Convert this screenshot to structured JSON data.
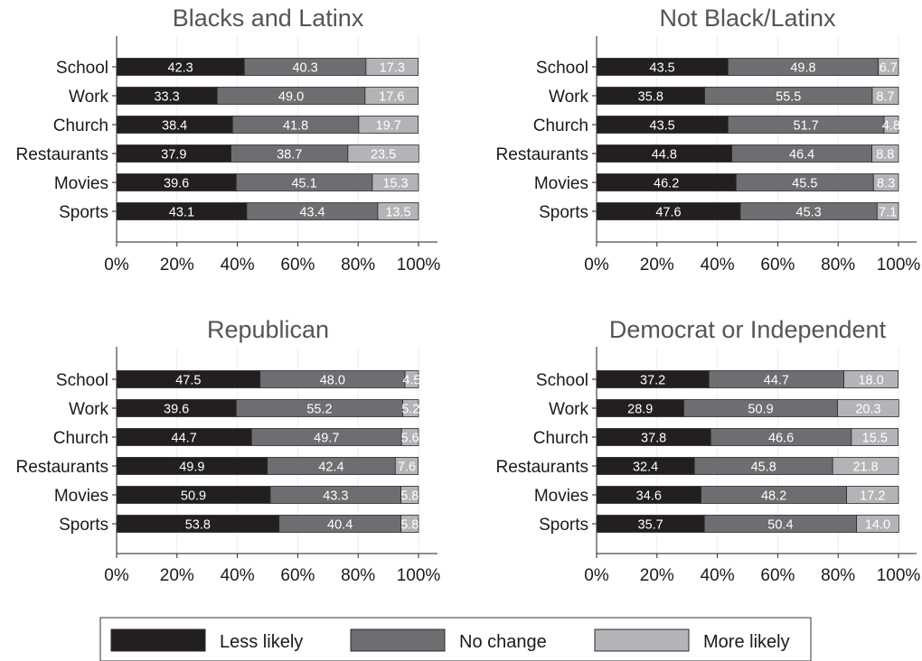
{
  "chart_data": {
    "type": "bar",
    "stacked": true,
    "orientation": "horizontal",
    "grid": true,
    "legend_position": "bottom",
    "xlim": [
      0,
      100
    ],
    "x_ticks": [
      "0%",
      "20%",
      "40%",
      "60%",
      "80%",
      "100%"
    ],
    "categories": [
      "School",
      "Work",
      "Church",
      "Restaurants",
      "Movies",
      "Sports"
    ],
    "series_names": [
      "Less likely",
      "No change",
      "More likely"
    ],
    "colors": [
      "#231f20",
      "#6e6e72",
      "#b4b4b8"
    ],
    "panels": [
      {
        "title": "Blacks and Latinx",
        "values": [
          [
            42.3,
            40.3,
            17.3
          ],
          [
            33.3,
            49.0,
            17.6
          ],
          [
            38.4,
            41.8,
            19.7
          ],
          [
            37.9,
            38.7,
            23.5
          ],
          [
            39.6,
            45.1,
            15.3
          ],
          [
            43.1,
            43.4,
            13.5
          ]
        ],
        "labels": [
          [
            "42.3",
            "40.3",
            "17.3"
          ],
          [
            "33.3",
            "49.0",
            "17.6"
          ],
          [
            "38.4",
            "41.8",
            "19.7"
          ],
          [
            "37.9",
            "38.7",
            "23.5"
          ],
          [
            "39.6",
            "45.1",
            "15.3"
          ],
          [
            "43.1",
            "43.4",
            "13.5"
          ]
        ]
      },
      {
        "title": "Not Black/Latinx",
        "values": [
          [
            43.5,
            49.8,
            6.7
          ],
          [
            35.8,
            55.5,
            8.7
          ],
          [
            43.5,
            51.7,
            4.8
          ],
          [
            44.8,
            46.4,
            8.8
          ],
          [
            46.2,
            45.5,
            8.3
          ],
          [
            47.6,
            45.3,
            7.1
          ]
        ],
        "labels": [
          [
            "43.5",
            "49.8",
            "6.7"
          ],
          [
            "35.8",
            "55.5",
            "8.7"
          ],
          [
            "43.5",
            "51.7",
            "4.8"
          ],
          [
            "44.8",
            "46.4",
            "8.8"
          ],
          [
            "46.2",
            "45.5",
            "8.3"
          ],
          [
            "47.6",
            "45.3",
            "7.1"
          ]
        ]
      },
      {
        "title": "Republican",
        "values": [
          [
            47.5,
            48.0,
            4.5
          ],
          [
            39.6,
            55.2,
            5.2
          ],
          [
            44.7,
            49.7,
            5.6
          ],
          [
            49.9,
            42.4,
            7.6
          ],
          [
            50.9,
            43.3,
            5.8
          ],
          [
            53.8,
            40.4,
            5.8
          ]
        ],
        "labels": [
          [
            "47.5",
            "48.0",
            "4.5"
          ],
          [
            "39.6",
            "55.2",
            "5.2"
          ],
          [
            "44.7",
            "49.7",
            "5.6"
          ],
          [
            "49.9",
            "42.4",
            "7.6"
          ],
          [
            "50.9",
            "43.3",
            "5.8"
          ],
          [
            "53.8",
            "40.4",
            "5.8"
          ]
        ]
      },
      {
        "title": "Democrat or Independent",
        "values": [
          [
            37.2,
            44.7,
            18.0
          ],
          [
            28.9,
            50.9,
            20.3
          ],
          [
            37.8,
            46.6,
            15.5
          ],
          [
            32.4,
            45.8,
            21.8
          ],
          [
            34.6,
            48.2,
            17.2
          ],
          [
            35.7,
            50.4,
            14.0
          ]
        ],
        "labels": [
          [
            "37.2",
            "44.7",
            "18.0"
          ],
          [
            "28.9",
            "50.9",
            "20.3"
          ],
          [
            "37.8",
            "46.6",
            "15.5"
          ],
          [
            "32.4",
            "45.8",
            "21.8"
          ],
          [
            "34.6",
            "48.2",
            "17.2"
          ],
          [
            "35.7",
            "50.4",
            "14.0"
          ]
        ]
      }
    ]
  }
}
